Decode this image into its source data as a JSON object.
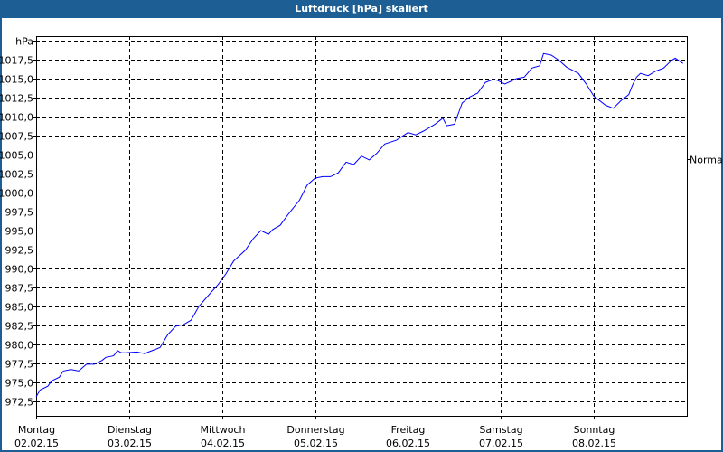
{
  "window": {
    "title": "Luftdruck [hPa] skaliert",
    "accent_color": "#1d5f94"
  },
  "chart_data": {
    "type": "line",
    "title": "Luftdruck [hPa] skaliert",
    "ylabel": "hPa",
    "ylim": [
      970.6,
      1020.6
    ],
    "yticks": [
      "972,5",
      "975,0",
      "977,5",
      "980,0",
      "982,5",
      "985,0",
      "987,5",
      "990,0",
      "992,5",
      "995,0",
      "997,5",
      "1000,0",
      "1002,5",
      "1005,0",
      "1007,5",
      "1010,0",
      "1012,5",
      "1015,0",
      "1017,5"
    ],
    "ytick_values": [
      972.5,
      975,
      977.5,
      980,
      982.5,
      985,
      987.5,
      990,
      992.5,
      995,
      997.5,
      1000,
      1002.5,
      1005,
      1007.5,
      1010,
      1012.5,
      1015,
      1017.5
    ],
    "xticks": [
      {
        "day": "Montag",
        "date": "02.02.15"
      },
      {
        "day": "Dienstag",
        "date": "03.02.15"
      },
      {
        "day": "Mittwoch",
        "date": "04.02.15"
      },
      {
        "day": "Donnerstag",
        "date": "05.02.15"
      },
      {
        "day": "Freitag",
        "date": "06.02.15"
      },
      {
        "day": "Samstag",
        "date": "07.02.15"
      },
      {
        "day": "Sonntag",
        "date": "08.02.15"
      }
    ],
    "xlim": [
      "02.02.15 00",
      "09.02.15 00"
    ],
    "grid": true,
    "line_color": "#0000ff",
    "reference": {
      "label": "Normal",
      "value": 1004.4
    },
    "points": [
      [
        "02.02.15 00",
        973.1
      ],
      [
        "02.02.15 01",
        974.0
      ],
      [
        "02.02.15 03",
        974.5
      ],
      [
        "02.02.15 04",
        975.2
      ],
      [
        "02.02.15 06",
        975.7
      ],
      [
        "02.02.15 07",
        976.5
      ],
      [
        "02.02.15 09",
        976.7
      ],
      [
        "02.02.15 11",
        976.5
      ],
      [
        "02.02.15 13",
        977.4
      ],
      [
        "02.02.15 15",
        977.4
      ],
      [
        "02.02.15 17",
        977.9
      ],
      [
        "02.02.15 18",
        978.3
      ],
      [
        "02.02.15 20",
        978.5
      ],
      [
        "02.02.15 21",
        979.2
      ],
      [
        "02.02.15 22",
        978.9
      ],
      [
        "02.02.15 23",
        978.9
      ],
      [
        "03.02.15 02",
        979.0
      ],
      [
        "03.02.15 04",
        978.8
      ],
      [
        "03.02.15 05",
        979.0
      ],
      [
        "03.02.15 07",
        979.4
      ],
      [
        "03.02.15 08",
        979.6
      ],
      [
        "03.02.15 10",
        981.3
      ],
      [
        "03.02.15 12",
        982.4
      ],
      [
        "03.02.15 14",
        982.6
      ],
      [
        "03.02.15 16",
        983.2
      ],
      [
        "03.02.15 18",
        985.0
      ],
      [
        "03.02.15 20",
        986.2
      ],
      [
        "03.02.15 23",
        987.9
      ],
      [
        "04.02.15 01",
        989.3
      ],
      [
        "04.02.15 03",
        991.0
      ],
      [
        "04.02.15 06",
        992.4
      ],
      [
        "04.02.15 08",
        993.9
      ],
      [
        "04.02.15 10",
        995.0
      ],
      [
        "04.02.15 12",
        994.5
      ],
      [
        "04.02.15 13",
        995.1
      ],
      [
        "04.02.15 15",
        995.7
      ],
      [
        "04.02.15 17",
        997.1
      ],
      [
        "04.02.15 20",
        999.0
      ],
      [
        "04.02.15 22",
        1001.0
      ],
      [
        "05.02.15 00",
        1001.9
      ],
      [
        "05.02.15 02",
        1002.1
      ],
      [
        "05.02.15 04",
        1002.1
      ],
      [
        "05.02.15 06",
        1002.6
      ],
      [
        "05.02.15 08",
        1004.0
      ],
      [
        "05.02.15 10",
        1003.7
      ],
      [
        "05.02.15 12",
        1004.8
      ],
      [
        "05.02.15 14",
        1004.3
      ],
      [
        "05.02.15 16",
        1005.2
      ],
      [
        "05.02.15 18",
        1006.4
      ],
      [
        "05.02.15 21",
        1006.9
      ],
      [
        "06.02.15 00",
        1007.9
      ],
      [
        "06.02.15 02",
        1007.6
      ],
      [
        "06.02.15 04",
        1008.1
      ],
      [
        "06.02.15 07",
        1009.0
      ],
      [
        "06.02.15 09",
        1009.8
      ],
      [
        "06.02.15 10",
        1008.8
      ],
      [
        "06.02.15 12",
        1009.0
      ],
      [
        "06.02.15 14",
        1011.8
      ],
      [
        "06.02.15 16",
        1012.6
      ],
      [
        "06.02.15 18",
        1013.1
      ],
      [
        "06.02.15 20",
        1014.5
      ],
      [
        "06.02.15 22",
        1014.9
      ],
      [
        "06.02.15 23",
        1014.8
      ],
      [
        "07.02.15 01",
        1014.3
      ],
      [
        "07.02.15 04",
        1015.0
      ],
      [
        "07.02.15 06",
        1015.2
      ],
      [
        "07.02.15 08",
        1016.4
      ],
      [
        "07.02.15 10",
        1016.7
      ],
      [
        "07.02.15 11",
        1018.3
      ],
      [
        "07.02.15 13",
        1018.1
      ],
      [
        "07.02.15 15",
        1017.4
      ],
      [
        "07.02.15 17",
        1016.5
      ],
      [
        "07.02.15 20",
        1015.7
      ],
      [
        "07.02.15 22",
        1014.3
      ],
      [
        "08.02.15 00",
        1012.7
      ],
      [
        "08.02.15 03",
        1011.5
      ],
      [
        "08.02.15 05",
        1011.1
      ],
      [
        "08.02.15 07",
        1012.1
      ],
      [
        "08.02.15 09",
        1012.9
      ],
      [
        "08.02.15 10",
        1014.2
      ],
      [
        "08.02.15 11",
        1015.2
      ],
      [
        "08.02.15 12",
        1015.7
      ],
      [
        "08.02.15 14",
        1015.4
      ],
      [
        "08.02.15 16",
        1016.0
      ],
      [
        "08.02.15 18",
        1016.4
      ],
      [
        "08.02.15 20",
        1017.4
      ],
      [
        "08.02.15 21",
        1017.7
      ],
      [
        "08.02.15 23",
        1017.0
      ]
    ]
  }
}
